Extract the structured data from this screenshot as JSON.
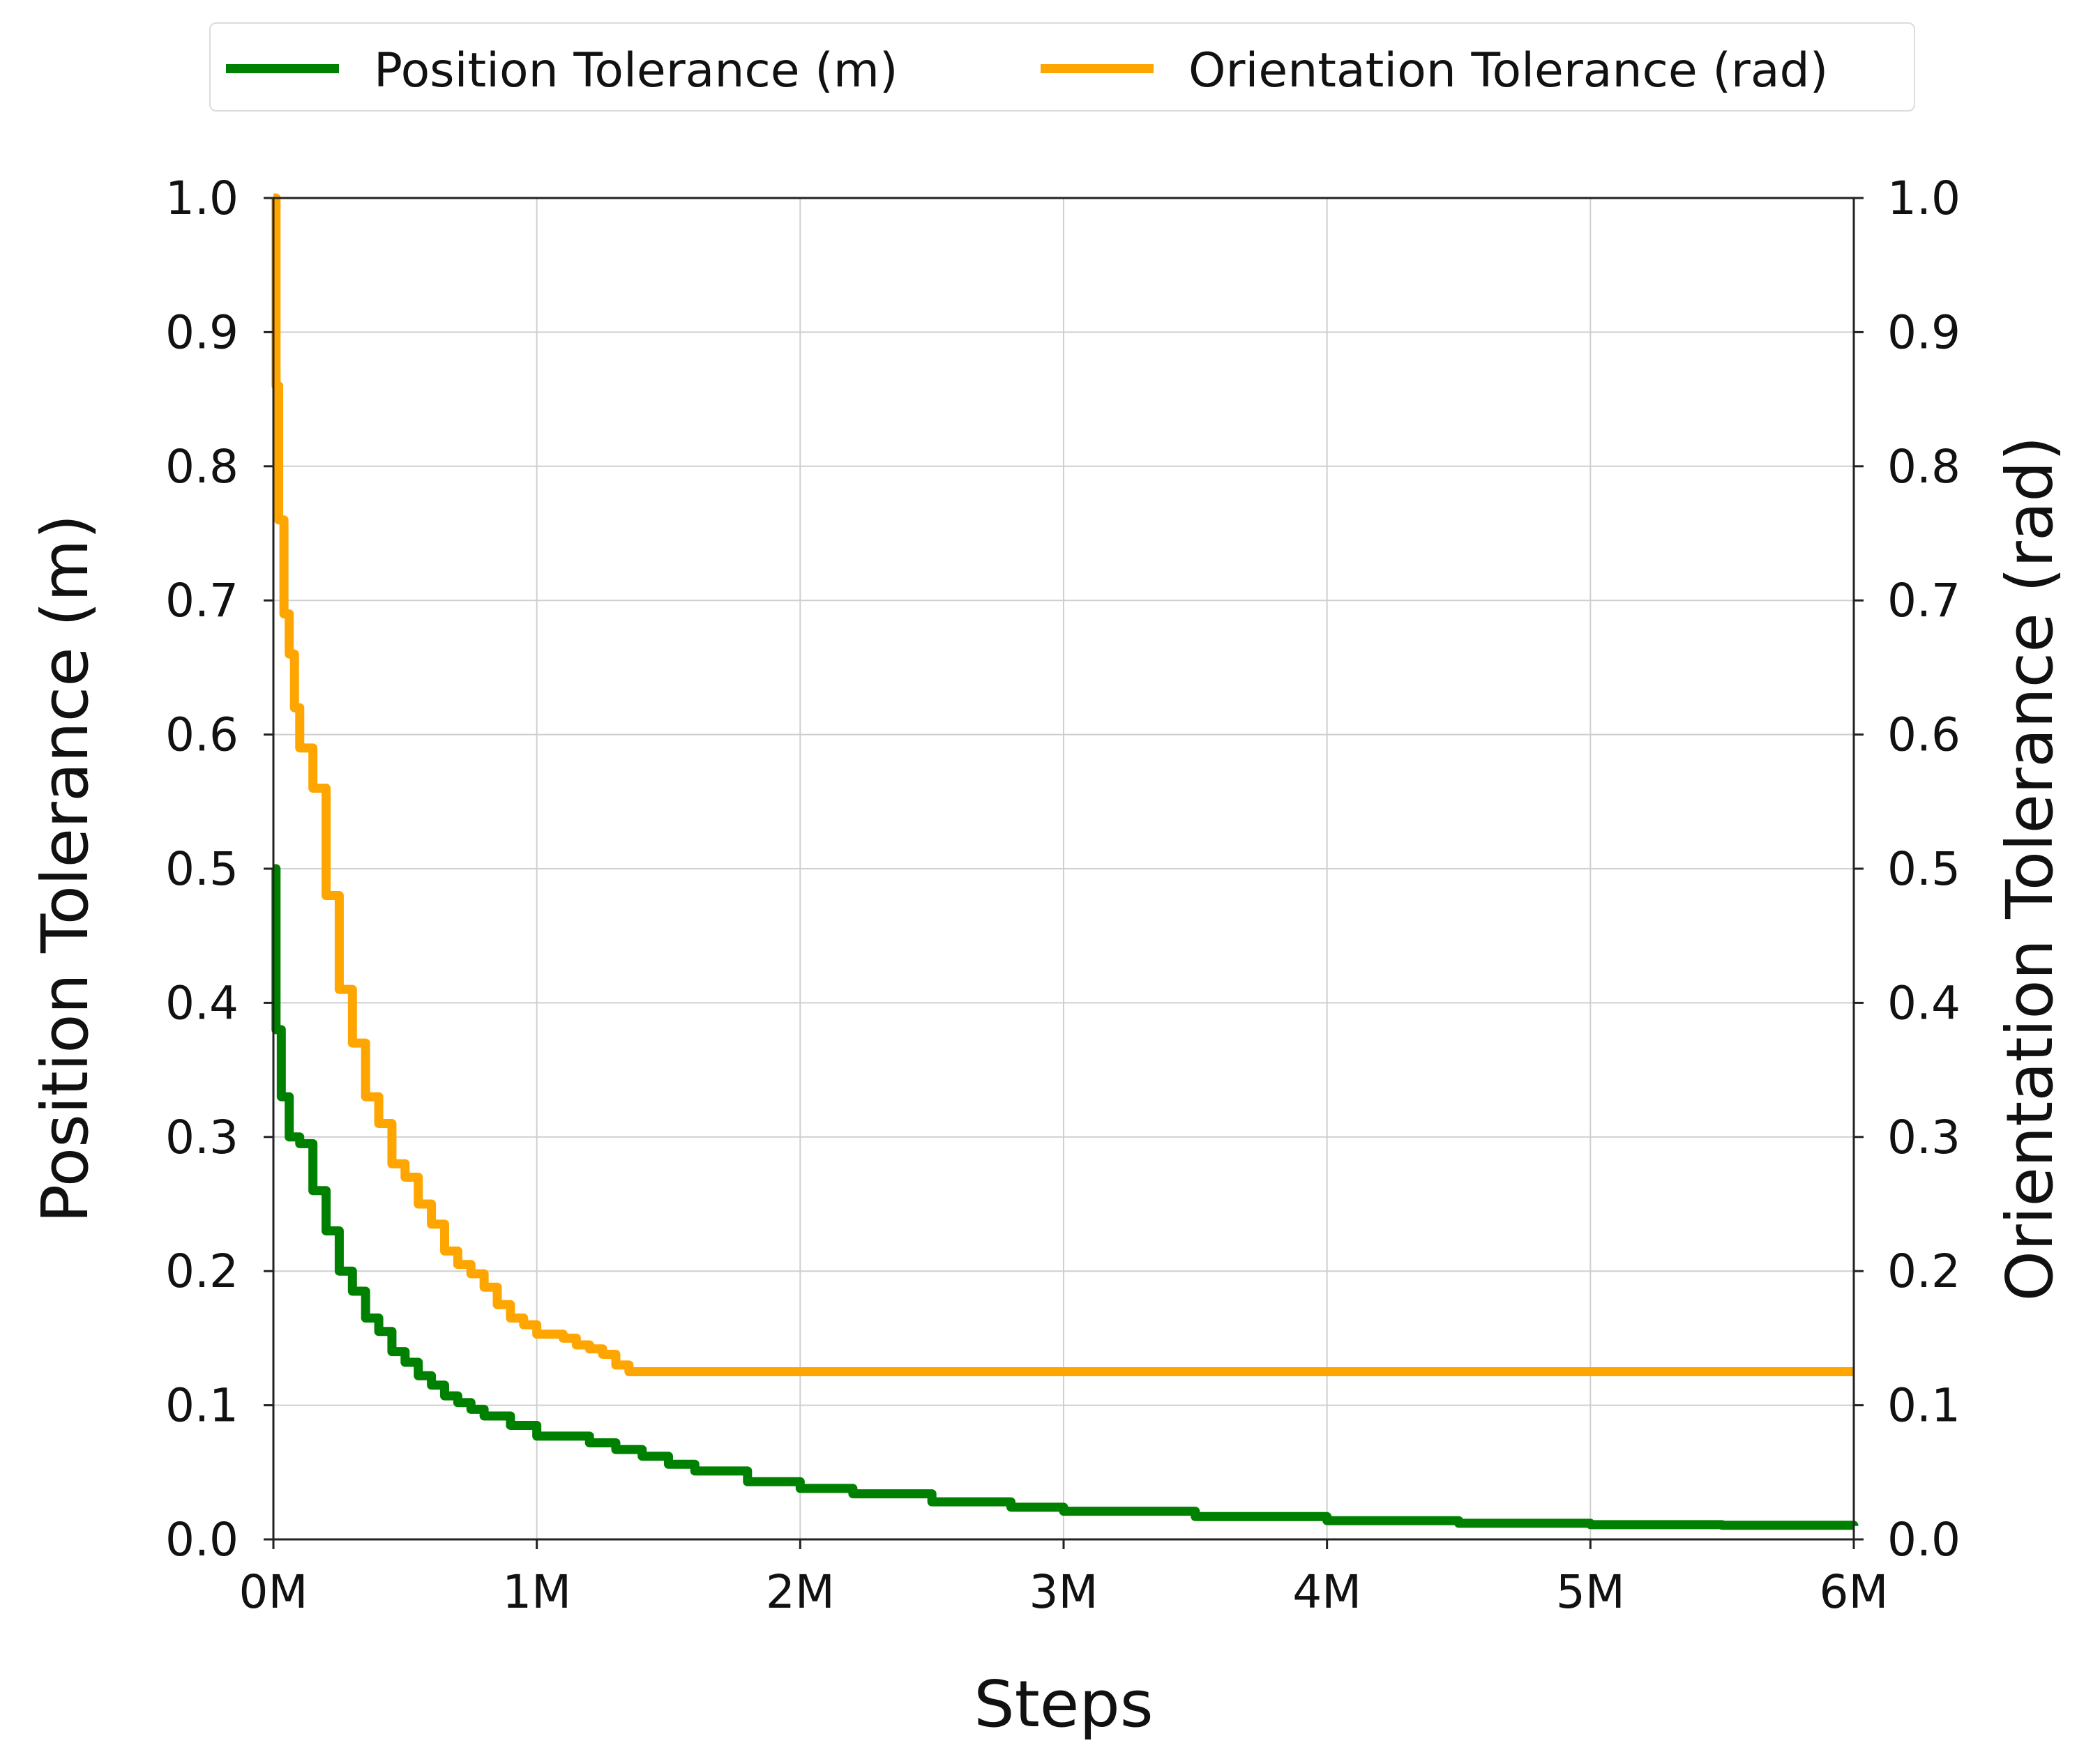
{
  "chart_data": {
    "type": "line",
    "title": "",
    "xlabel": "Steps",
    "ylabel_left": "Position Tolerance (m)",
    "ylabel_right": "Orientation Tolerance (rad)",
    "xlim": [
      0,
      6
    ],
    "ylim_left": [
      0,
      1.0
    ],
    "ylim_right": [
      0,
      1.0
    ],
    "grid": true,
    "legend_position": "top-center",
    "x_tick_labels": [
      "0M",
      "1M",
      "2M",
      "3M",
      "4M",
      "5M",
      "6M"
    ],
    "y_tick_labels_left": [
      "0.0",
      "0.1",
      "0.2",
      "0.3",
      "0.4",
      "0.5",
      "0.6",
      "0.7",
      "0.8",
      "0.9",
      "1.0"
    ],
    "y_tick_labels_right": [
      "0.0",
      "0.1",
      "0.2",
      "0.3",
      "0.4",
      "0.5",
      "0.6",
      "0.7",
      "0.8",
      "0.9",
      "1.0"
    ],
    "x_units": "million steps",
    "series": [
      {
        "name": "Position Tolerance (m)",
        "axis": "left",
        "color": "#008000",
        "x": [
          0,
          0.01,
          0.03,
          0.06,
          0.1,
          0.15,
          0.2,
          0.25,
          0.3,
          0.35,
          0.4,
          0.45,
          0.5,
          0.55,
          0.6,
          0.65,
          0.7,
          0.75,
          0.8,
          0.9,
          1.0,
          1.1,
          1.2,
          1.3,
          1.4,
          1.5,
          1.6,
          1.8,
          2.0,
          2.2,
          2.5,
          2.8,
          3.0,
          3.5,
          4.0,
          4.5,
          5.0,
          5.5,
          6.0
        ],
        "y": [
          0.5,
          0.38,
          0.33,
          0.3,
          0.295,
          0.26,
          0.23,
          0.2,
          0.185,
          0.165,
          0.155,
          0.14,
          0.132,
          0.122,
          0.115,
          0.107,
          0.102,
          0.097,
          0.092,
          0.085,
          0.077,
          0.077,
          0.072,
          0.067,
          0.062,
          0.056,
          0.051,
          0.043,
          0.038,
          0.034,
          0.028,
          0.024,
          0.021,
          0.017,
          0.014,
          0.012,
          0.011,
          0.0105,
          0.01
        ]
      },
      {
        "name": "Orientation Tolerance (rad)",
        "axis": "right",
        "color": "#FFA500",
        "x": [
          0,
          0.01,
          0.02,
          0.04,
          0.06,
          0.08,
          0.1,
          0.15,
          0.2,
          0.25,
          0.3,
          0.35,
          0.4,
          0.45,
          0.5,
          0.55,
          0.6,
          0.65,
          0.7,
          0.75,
          0.8,
          0.85,
          0.9,
          0.95,
          1.0,
          1.05,
          1.1,
          1.15,
          1.2,
          1.25,
          1.3,
          1.35,
          2.0,
          3.0,
          4.0,
          5.0,
          6.0
        ],
        "y": [
          1.0,
          0.86,
          0.76,
          0.69,
          0.66,
          0.62,
          0.59,
          0.56,
          0.48,
          0.41,
          0.37,
          0.33,
          0.31,
          0.28,
          0.27,
          0.25,
          0.235,
          0.215,
          0.205,
          0.198,
          0.188,
          0.175,
          0.165,
          0.16,
          0.153,
          0.153,
          0.15,
          0.145,
          0.142,
          0.138,
          0.13,
          0.125,
          0.125,
          0.125,
          0.125,
          0.125,
          0.125
        ]
      }
    ]
  },
  "legend": {
    "items": [
      {
        "label": "Position Tolerance (m)",
        "color": "#008000"
      },
      {
        "label": "Orientation Tolerance (rad)",
        "color": "#FFA500"
      }
    ]
  }
}
